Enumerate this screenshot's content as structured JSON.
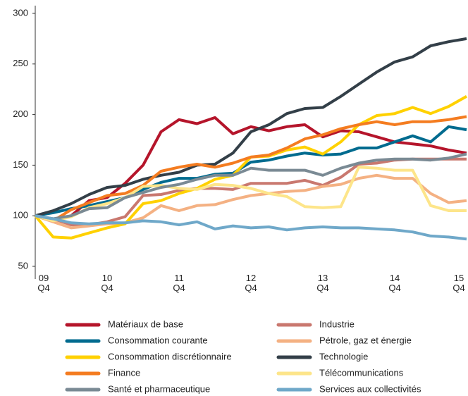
{
  "chart_data": {
    "type": "line",
    "categories": [
      "09 Q4",
      null,
      null,
      null,
      "10 Q4",
      null,
      null,
      null,
      "11 Q4",
      null,
      null,
      null,
      "12 Q4",
      null,
      null,
      null,
      "13 Q4",
      null,
      null,
      null,
      "14 Q4",
      null,
      null,
      null,
      "15 Q4"
    ],
    "ylim": [
      50,
      300
    ],
    "yticks": [
      50,
      100,
      150,
      200,
      250,
      300
    ],
    "series": [
      {
        "name": "Matériaux de base",
        "color": "#b5152b",
        "values": [
          100,
          95,
          100,
          115,
          118,
          132,
          150,
          183,
          195,
          191,
          197,
          181,
          188,
          184,
          188,
          190,
          178,
          184,
          183,
          178,
          173,
          171,
          169,
          165,
          162
        ]
      },
      {
        "name": "Industrie",
        "color": "#c9786f",
        "values": [
          100,
          97,
          91,
          91,
          94,
          99,
          120,
          121,
          125,
          127,
          127,
          126,
          132,
          132,
          132,
          135,
          130,
          138,
          151,
          152,
          155,
          156,
          156,
          156,
          156
        ]
      },
      {
        "name": "Consommation courante",
        "color": "#006b8f",
        "values": [
          100,
          103,
          107,
          110,
          114,
          118,
          126,
          133,
          137,
          137,
          141,
          142,
          153,
          155,
          159,
          162,
          160,
          161,
          167,
          167,
          173,
          179,
          173,
          188,
          185
        ]
      },
      {
        "name": "Pétrole, gaz et énergie",
        "color": "#f4b183",
        "values": [
          100,
          94,
          88,
          90,
          92,
          93,
          98,
          110,
          105,
          110,
          111,
          116,
          120,
          122,
          124,
          125,
          129,
          131,
          137,
          140,
          137,
          137,
          122,
          113,
          115
        ]
      },
      {
        "name": "Consommation discrétionnaire",
        "color": "#ffd100",
        "values": [
          100,
          79,
          78,
          83,
          88,
          92,
          112,
          115,
          122,
          127,
          136,
          140,
          158,
          159,
          165,
          168,
          161,
          173,
          190,
          199,
          201,
          207,
          201,
          208,
          218
        ]
      },
      {
        "name": "Technologie",
        "color": "#333f48",
        "values": [
          100,
          105,
          112,
          121,
          128,
          130,
          136,
          140,
          143,
          150,
          151,
          162,
          183,
          190,
          201,
          206,
          207,
          218,
          230,
          242,
          252,
          257,
          268,
          272,
          275
        ]
      },
      {
        "name": "Finance",
        "color": "#f47c20",
        "values": [
          100,
          95,
          106,
          113,
          120,
          122,
          130,
          144,
          148,
          151,
          148,
          152,
          158,
          160,
          167,
          176,
          180,
          186,
          190,
          193,
          190,
          193,
          193,
          195,
          198
        ]
      },
      {
        "name": "Télécommunications",
        "color": "#fde58a",
        "values": [
          100,
          95,
          99,
          108,
          112,
          118,
          129,
          130,
          127,
          126,
          131,
          130,
          127,
          122,
          119,
          109,
          108,
          109,
          148,
          147,
          145,
          145,
          110,
          105,
          105
        ]
      },
      {
        "name": "Santé et pharmaceutique",
        "color": "#7a8a94",
        "values": [
          100,
          97,
          100,
          107,
          108,
          118,
          123,
          128,
          131,
          136,
          140,
          140,
          147,
          145,
          145,
          145,
          140,
          147,
          152,
          155,
          156,
          156,
          155,
          157,
          161
        ]
      },
      {
        "name": "Services aux collectivités",
        "color": "#6fa8c9",
        "values": [
          100,
          97,
          93,
          92,
          93,
          93,
          95,
          94,
          91,
          94,
          87,
          90,
          88,
          89,
          86,
          88,
          89,
          88,
          88,
          87,
          86,
          84,
          80,
          79,
          77
        ]
      }
    ]
  }
}
